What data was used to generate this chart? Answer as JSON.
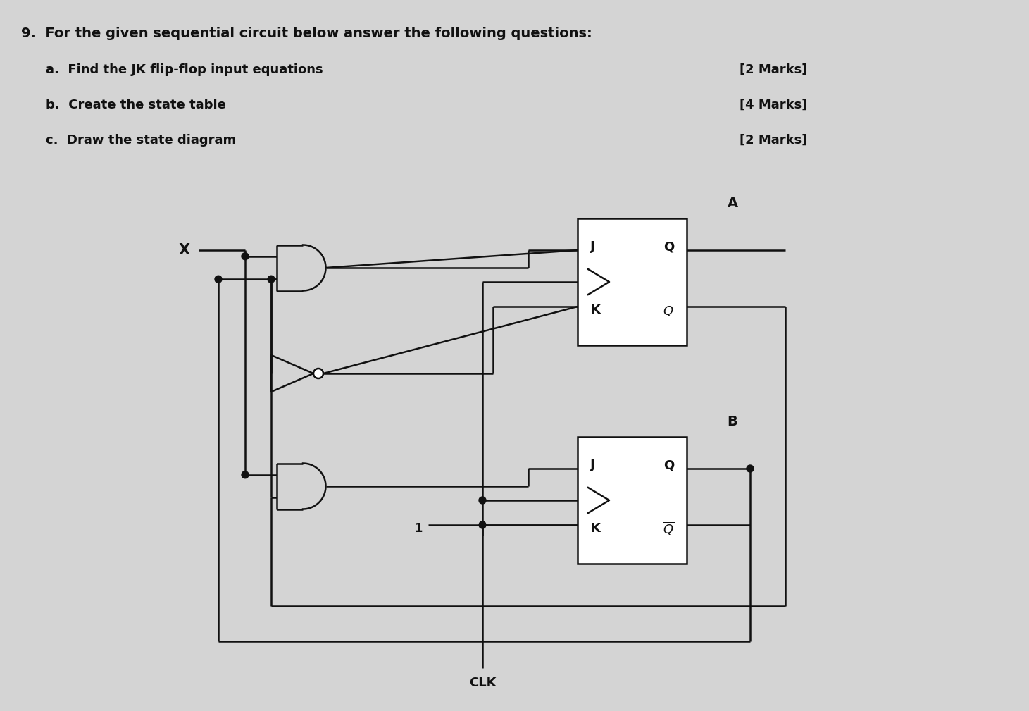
{
  "bg_color": "#d4d4d4",
  "text_color": "#111111",
  "title_line1": "9.  For the given sequential circuit below answer the following questions:",
  "sub_a": "a.  Find the JK flip-flop input equations",
  "sub_b": "b.  Create the state table",
  "sub_c": "c.  Draw the state diagram",
  "marks_a": "[2 Marks]",
  "marks_b": "[4 Marks]",
  "marks_c": "[2 Marks]",
  "lc": "#111111",
  "lw": 1.8
}
